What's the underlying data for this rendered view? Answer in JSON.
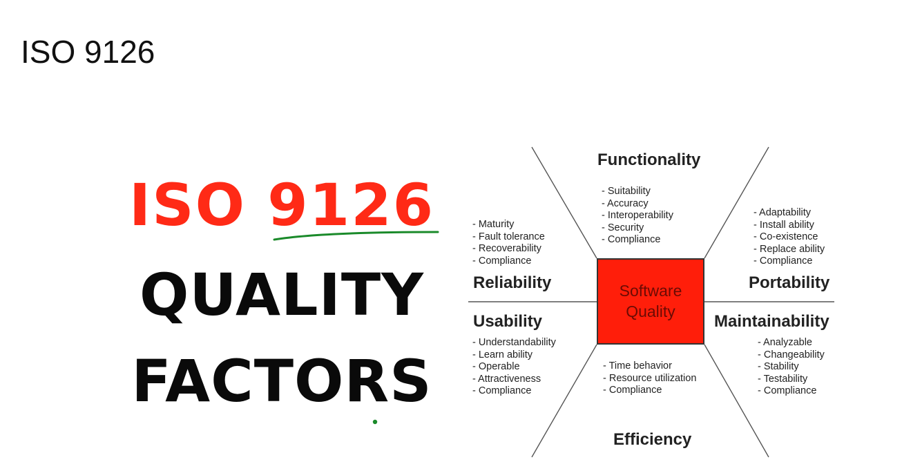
{
  "slide": {
    "title": "ISO 9126"
  },
  "headline": {
    "part1": "ISO ",
    "part1_number": "9126",
    "line2": "QUALITY",
    "line3": "FACTORS",
    "colors": {
      "red": "#ff2a16",
      "black": "#0a0a0a",
      "annotation_green": "#1a8a2a"
    }
  },
  "diagram": {
    "center": {
      "label": "Software\nQuality",
      "color": "#ff1e0a"
    },
    "factors": {
      "functionality": {
        "title": "Functionality",
        "items": [
          "- Suitability",
          "- Accuracy",
          "- Interoperability",
          "- Security",
          "- Compliance"
        ]
      },
      "reliability": {
        "title": "Reliability",
        "items": [
          "- Maturity",
          "- Fault tolerance",
          "- Recoverability",
          "- Compliance"
        ]
      },
      "portability": {
        "title": "Portability",
        "items": [
          "- Adaptability",
          "- Install ability",
          "- Co-existence",
          "- Replace ability",
          "- Compliance"
        ]
      },
      "usability": {
        "title": "Usability",
        "items": [
          "- Understandability",
          "- Learn ability",
          "- Operable",
          "- Attractiveness",
          "- Compliance"
        ]
      },
      "maintainability": {
        "title": "Maintainability",
        "items": [
          "- Analyzable",
          "- Changeability",
          "- Stability",
          "- Testability",
          "- Compliance"
        ]
      },
      "efficiency": {
        "title": "Efficiency",
        "items": [
          "- Time behavior",
          "- Resource utilization",
          "- Compliance"
        ]
      }
    }
  }
}
